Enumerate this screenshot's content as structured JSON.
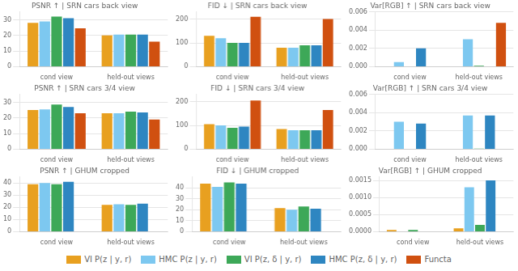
{
  "chart_data": [
    {
      "type": "bar",
      "title": "PSNR ↑ | SRN cars back view",
      "categories": [
        "cond view",
        "held-out views"
      ],
      "series": [
        {
          "name": "VI P(z | y, r)",
          "color": "#E8A020",
          "values": [
            28.0,
            20.0
          ]
        },
        {
          "name": "HMC P(z | y, r)",
          "color": "#7DC8F0",
          "values": [
            29.0,
            20.5
          ]
        },
        {
          "name": "VI P(z, δ | y, r)",
          "color": "#3DA858",
          "values": [
            32.0,
            20.5
          ]
        },
        {
          "name": "HMC P(z, δ | y, r)",
          "color": "#2E86C1",
          "values": [
            31.0,
            20.5
          ]
        },
        {
          "name": "Functa",
          "color": "#D05010",
          "values": [
            24.5,
            16.0
          ]
        }
      ],
      "ylim": [
        0,
        35
      ],
      "yticks": [
        0,
        10,
        20,
        30
      ],
      "grid": true,
      "legend": "bottom"
    },
    {
      "type": "bar",
      "title": "FID ↓ | SRN cars back view",
      "categories": [
        "cond view",
        "held-out views"
      ],
      "series": [
        {
          "name": "VI P(z | y, r)",
          "color": "#E8A020",
          "values": [
            130,
            80
          ]
        },
        {
          "name": "HMC P(z | y, r)",
          "color": "#7DC8F0",
          "values": [
            120,
            80
          ]
        },
        {
          "name": "VI P(z, δ | y, r)",
          "color": "#3DA858",
          "values": [
            100,
            90
          ]
        },
        {
          "name": "HMC P(z, δ | y, r)",
          "color": "#2E86C1",
          "values": [
            100,
            90
          ]
        },
        {
          "name": "Functa",
          "color": "#D05010",
          "values": [
            210,
            200
          ]
        }
      ],
      "ylim": [
        0,
        230
      ],
      "yticks": [
        0,
        100,
        200
      ],
      "grid": true
    },
    {
      "type": "bar",
      "title": "Var[RGB] ↑ | SRN cars back view",
      "categories": [
        "cond view",
        "held-out views"
      ],
      "series": [
        {
          "name": "VI P(z | y, r)",
          "color": "#E8A020",
          "values": [
            0,
            0
          ]
        },
        {
          "name": "HMC P(z | y, r)",
          "color": "#7DC8F0",
          "values": [
            0.0005,
            0.003
          ]
        },
        {
          "name": "VI P(z, δ | y, r)",
          "color": "#3DA858",
          "values": [
            0,
            0.0001
          ]
        },
        {
          "name": "HMC P(z, δ | y, r)",
          "color": "#2E86C1",
          "values": [
            0.002,
            0
          ]
        },
        {
          "name": "Functa",
          "color": "#D05010",
          "values": [
            0,
            0.0048
          ]
        }
      ],
      "ylim": [
        0,
        0.006
      ],
      "yticks": [
        {
          "value": 0,
          "label": "0.000"
        },
        {
          "value": 0.002,
          "label": "0.002"
        },
        {
          "value": 0.004,
          "label": "0.004"
        },
        {
          "value": 0.006,
          "label": "0.006"
        }
      ],
      "grid": true
    },
    {
      "type": "bar",
      "title": "PSNR ↑ | SRN cars 3/4 view",
      "categories": [
        "cond view",
        "held-out views"
      ],
      "series": [
        {
          "name": "VI P(z | y, r)",
          "color": "#E8A020",
          "values": [
            25.0,
            23.0
          ]
        },
        {
          "name": "HMC P(z | y, r)",
          "color": "#7DC8F0",
          "values": [
            25.5,
            23.0
          ]
        },
        {
          "name": "VI P(z, δ | y, r)",
          "color": "#3DA858",
          "values": [
            28.5,
            24.0
          ]
        },
        {
          "name": "HMC P(z, δ | y, r)",
          "color": "#2E86C1",
          "values": [
            27.0,
            23.5
          ]
        },
        {
          "name": "Functa",
          "color": "#D05010",
          "values": [
            23.0,
            19.0
          ]
        }
      ],
      "ylim": [
        0,
        35
      ],
      "yticks": [
        0,
        10,
        20,
        30
      ],
      "grid": true
    },
    {
      "type": "bar",
      "title": "FID ↓ | SRN cars 3/4 view",
      "categories": [
        "cond view",
        "held-out views"
      ],
      "series": [
        {
          "name": "VI P(z | y, r)",
          "color": "#E8A020",
          "values": [
            105,
            85
          ]
        },
        {
          "name": "HMC P(z | y, r)",
          "color": "#7DC8F0",
          "values": [
            100,
            80
          ]
        },
        {
          "name": "VI P(z, δ | y, r)",
          "color": "#3DA858",
          "values": [
            90,
            80
          ]
        },
        {
          "name": "HMC P(z, δ | y, r)",
          "color": "#2E86C1",
          "values": [
            95,
            80
          ]
        },
        {
          "name": "Functa",
          "color": "#D05010",
          "values": [
            205,
            165
          ]
        }
      ],
      "ylim": [
        0,
        230
      ],
      "yticks": [
        0,
        100,
        200
      ],
      "grid": true
    },
    {
      "type": "bar",
      "title": "Var[RGB] ↑ | SRN cars 3/4 view",
      "categories": [
        "cond view",
        "held-out views"
      ],
      "series": [
        {
          "name": "VI P(z | y, r)",
          "color": "#E8A020",
          "values": [
            0,
            0
          ]
        },
        {
          "name": "HMC P(z | y, r)",
          "color": "#7DC8F0",
          "values": [
            0.003,
            0.0037
          ]
        },
        {
          "name": "VI P(z, δ | y, r)",
          "color": "#3DA858",
          "values": [
            0,
            5e-05
          ]
        },
        {
          "name": "HMC P(z, δ | y, r)",
          "color": "#2E86C1",
          "values": [
            0.0028,
            0.0037
          ]
        },
        {
          "name": "Functa",
          "color": "#D05010",
          "values": [
            0,
            0
          ]
        }
      ],
      "ylim": [
        0,
        0.006
      ],
      "yticks": [
        {
          "value": 0,
          "label": "0.000"
        },
        {
          "value": 0.002,
          "label": "0.002"
        },
        {
          "value": 0.004,
          "label": "0.004"
        },
        {
          "value": 0.006,
          "label": "0.006"
        }
      ],
      "grid": true
    },
    {
      "type": "bar",
      "title": "PSNR ↑ | GHUM cropped",
      "categories": [
        "cond view",
        "held-out views"
      ],
      "series": [
        {
          "name": "VI P(z | y, r)",
          "color": "#E8A020",
          "values": [
            39.0,
            22.0
          ]
        },
        {
          "name": "HMC P(z | y, r)",
          "color": "#7DC8F0",
          "values": [
            40.0,
            22.5
          ]
        },
        {
          "name": "VI P(z, δ | y, r)",
          "color": "#3DA858",
          "values": [
            39.0,
            22.0
          ]
        },
        {
          "name": "HMC P(z, δ | y, r)",
          "color": "#2E86C1",
          "values": [
            41.0,
            23.0
          ]
        },
        {
          "name": "Functa",
          "color": "#D05010",
          "values": [
            0,
            0
          ]
        }
      ],
      "ylim": [
        0,
        45
      ],
      "yticks": [
        0,
        10,
        20,
        30,
        40
      ],
      "grid": true
    },
    {
      "type": "bar",
      "title": "FID ↓ | GHUM cropped",
      "categories": [
        "cond view",
        "held-out views"
      ],
      "series": [
        {
          "name": "VI P(z | y, r)",
          "color": "#E8A020",
          "values": [
            44,
            21.5
          ]
        },
        {
          "name": "HMC P(z | y, r)",
          "color": "#7DC8F0",
          "values": [
            41,
            20
          ]
        },
        {
          "name": "VI P(z, δ | y, r)",
          "color": "#3DA858",
          "values": [
            45,
            23
          ]
        },
        {
          "name": "HMC P(z, δ | y, r)",
          "color": "#2E86C1",
          "values": [
            44,
            21
          ]
        },
        {
          "name": "Functa",
          "color": "#D05010",
          "values": [
            0,
            0
          ]
        }
      ],
      "ylim": [
        0,
        50
      ],
      "yticks": [
        0,
        10,
        20,
        30,
        40
      ],
      "grid": true
    },
    {
      "type": "bar",
      "title": "Var[RGB] ↑ | GHUM cropped",
      "categories": [
        "cond view",
        "held-out views"
      ],
      "series": [
        {
          "name": "VI P(z | y, r)",
          "color": "#E8A020",
          "values": [
            5e-05,
            0.0001
          ]
        },
        {
          "name": "HMC P(z | y, r)",
          "color": "#7DC8F0",
          "values": [
            0,
            0.0013
          ]
        },
        {
          "name": "VI P(z, δ | y, r)",
          "color": "#3DA858",
          "values": [
            5e-05,
            0.0002
          ]
        },
        {
          "name": "HMC P(z, δ | y, r)",
          "color": "#2E86C1",
          "values": [
            0,
            0.0015
          ]
        },
        {
          "name": "Functa",
          "color": "#D05010",
          "values": [
            0,
            0
          ]
        }
      ],
      "ylim": [
        0,
        0.0016
      ],
      "yticks": [
        {
          "value": 0,
          "label": "0.0000"
        },
        {
          "value": 0.0005,
          "label": "0.0005"
        },
        {
          "value": 0.001,
          "label": "0.0010"
        },
        {
          "value": 0.0015,
          "label": "0.0015"
        }
      ],
      "grid": true
    }
  ]
}
